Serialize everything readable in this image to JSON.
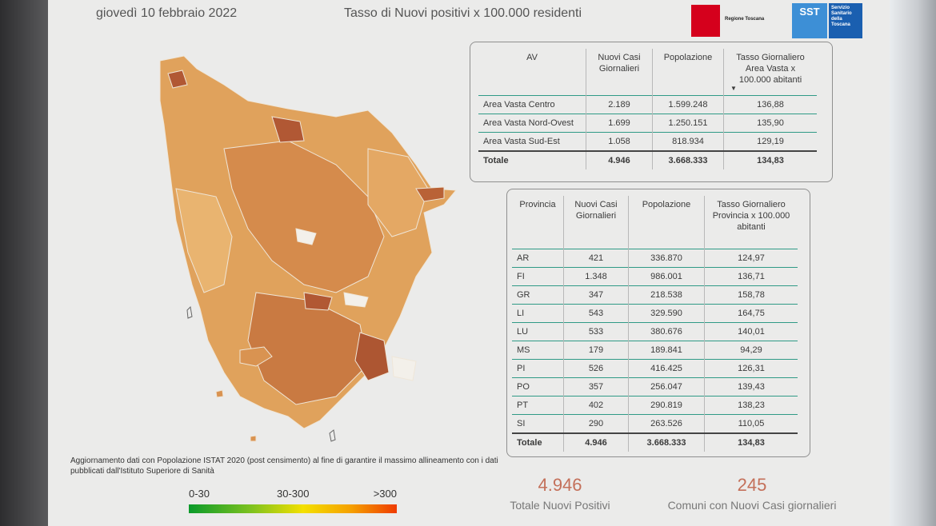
{
  "header": {
    "date": "giovedì 10 febbraio 2022",
    "title": "Tasso di Nuovi positivi x 100.000 residenti",
    "logo_left_text": "Regione Toscana",
    "logo_right_abbr": "SST",
    "logo_right_text": "Servizio Sanitario della Toscana"
  },
  "area_table": {
    "headers": [
      "AV",
      "Nuovi Casi Giornalieri",
      "Popolazione",
      "Tasso Giornaliero Area Vasta x 100.000 abitanti"
    ],
    "rows": [
      [
        "Area Vasta Centro",
        "2.189",
        "1.599.248",
        "136,88"
      ],
      [
        "Area Vasta Nord-Ovest",
        "1.699",
        "1.250.151",
        "135,90"
      ],
      [
        "Area Vasta Sud-Est",
        "1.058",
        "818.934",
        "129,19"
      ]
    ],
    "total": [
      "Totale",
      "4.946",
      "3.668.333",
      "134,83"
    ]
  },
  "province_table": {
    "headers": [
      "Provincia",
      "Nuovi Casi Giornalieri",
      "Popolazione",
      "Tasso Giornaliero Provincia x 100.000 abitanti"
    ],
    "rows": [
      [
        "AR",
        "421",
        "336.870",
        "124,97"
      ],
      [
        "FI",
        "1.348",
        "986.001",
        "136,71"
      ],
      [
        "GR",
        "347",
        "218.538",
        "158,78"
      ],
      [
        "LI",
        "543",
        "329.590",
        "164,75"
      ],
      [
        "LU",
        "533",
        "380.676",
        "140,01"
      ],
      [
        "MS",
        "179",
        "189.841",
        "94,29"
      ],
      [
        "PI",
        "526",
        "416.425",
        "126,31"
      ],
      [
        "PO",
        "357",
        "256.047",
        "139,43"
      ],
      [
        "PT",
        "402",
        "290.819",
        "138,23"
      ],
      [
        "SI",
        "290",
        "263.526",
        "110,05"
      ]
    ],
    "total": [
      "Totale",
      "4.946",
      "3.668.333",
      "134,83"
    ]
  },
  "note": "Aggiornamento dati con Popolazione ISTAT 2020 (post censimento) al fine di garantire il massimo allineamento con i dati pubblicati dall'Istituto Superiore di Sanità",
  "legend": {
    "low": "0-30",
    "mid": "30-300",
    "high": ">300"
  },
  "kpis": [
    {
      "value": "4.946",
      "caption": "Totale Nuovi Positivi"
    },
    {
      "value": "245",
      "caption": "Comuni con Nuovi Casi giornalieri"
    }
  ],
  "colors": {
    "map_light": "#e8b066",
    "map_mid": "#d4894a",
    "map_dark": "#b45a32",
    "kpi": "#c4705a",
    "rule": "#2f9a86"
  }
}
